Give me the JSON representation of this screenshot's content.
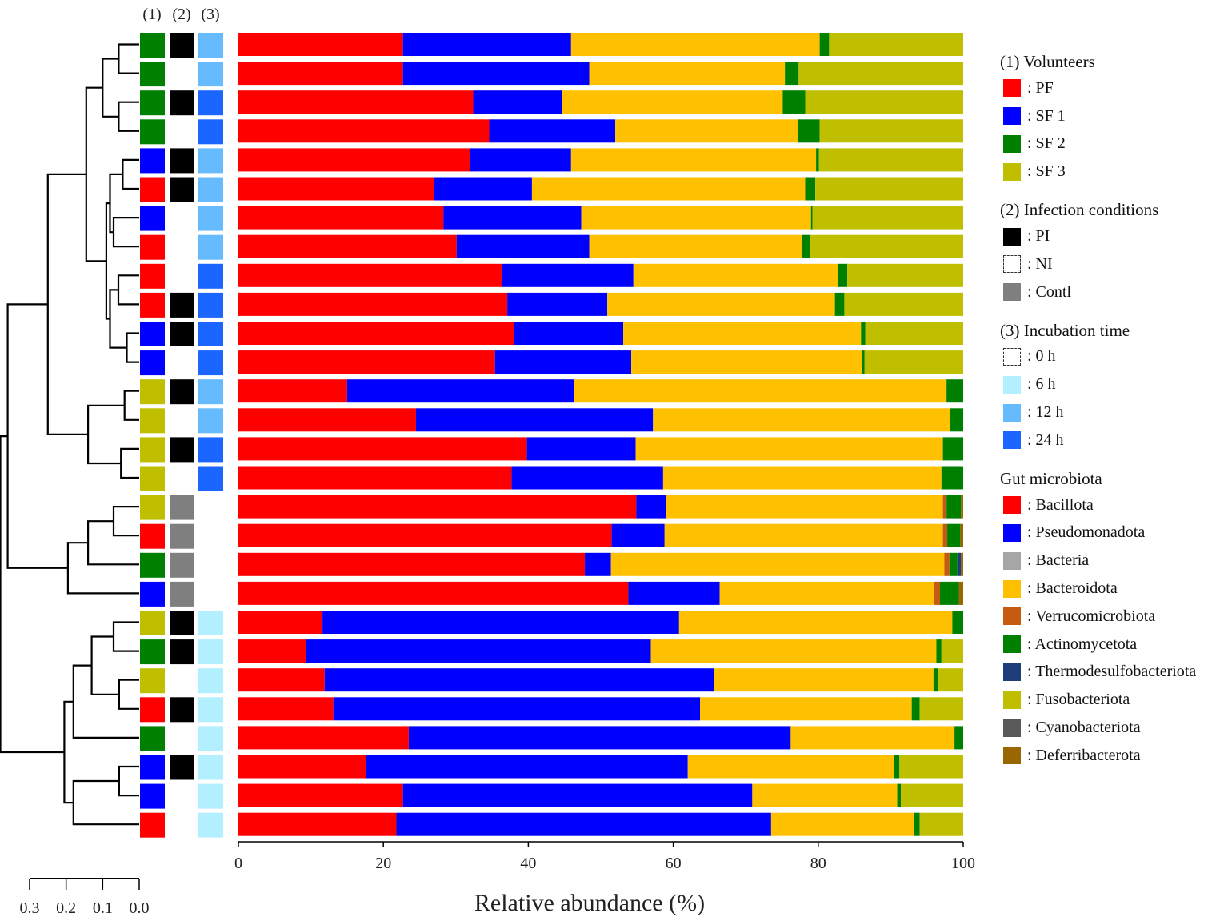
{
  "chart_data": {
    "type": "bar",
    "orientation": "horizontal",
    "stacked": true,
    "xlabel": "Relative abundance (%)",
    "xlim": [
      0,
      100
    ],
    "xticks": [
      "0",
      "20",
      "40",
      "60",
      "80",
      "100"
    ],
    "grid": false,
    "legend_position": "right",
    "column_headers": [
      "(1)",
      "(2)",
      "(3)"
    ],
    "dendrogram_scale": {
      "ticks": [
        "0.3",
        "0.2",
        "0.1",
        "0.0"
      ]
    },
    "categories": [
      "Bacillota",
      "Pseudomonadota",
      "Bacteria",
      "Bacteroidota",
      "Verrucomicrobiota",
      "Actinomycetota",
      "Thermodesulfobacteriota",
      "Fusobacteriota",
      "Cyanobacteriota",
      "Deferribacterota"
    ],
    "colors": {
      "Bacillota": "#ff0000",
      "Pseudomonadota": "#0000ff",
      "Bacteria": "#a6a6a6",
      "Bacteroidota": "#ffc000",
      "Verrucomicrobiota": "#c55a11",
      "Actinomycetota": "#008000",
      "Thermodesulfobacteriota": "#1f3d7a",
      "Fusobacteriota": "#bfbf00",
      "Cyanobacteriota": "#595959",
      "Deferribacterota": "#996600"
    },
    "samples": [
      {
        "volunteer": "SF 2",
        "infection": "PI",
        "time": "12 h",
        "values": [
          22.7,
          23.2,
          0,
          34.3,
          0,
          1.3,
          0,
          18.5,
          0,
          0
        ]
      },
      {
        "volunteer": "SF 2",
        "infection": "NI",
        "time": "12 h",
        "values": [
          22.7,
          25.7,
          0,
          27.0,
          0,
          1.9,
          0,
          22.7,
          0,
          0
        ]
      },
      {
        "volunteer": "SF 2",
        "infection": "PI",
        "time": "24 h",
        "values": [
          32.4,
          12.3,
          0,
          30.4,
          0,
          3.1,
          0,
          21.8,
          0,
          0
        ]
      },
      {
        "volunteer": "SF 2",
        "infection": "NI",
        "time": "24 h",
        "values": [
          34.6,
          17.4,
          0,
          25.2,
          0,
          3.0,
          0,
          19.8,
          0,
          0
        ]
      },
      {
        "volunteer": "SF 1",
        "infection": "PI",
        "time": "12 h",
        "values": [
          31.9,
          14.0,
          0,
          33.8,
          0,
          0.4,
          0,
          19.9,
          0,
          0
        ]
      },
      {
        "volunteer": "PF",
        "infection": "PI",
        "time": "12 h",
        "values": [
          27.0,
          13.5,
          0,
          37.7,
          0,
          1.4,
          0,
          20.4,
          0,
          0
        ]
      },
      {
        "volunteer": "SF 1",
        "infection": "NI",
        "time": "12 h",
        "values": [
          28.3,
          19.0,
          0,
          31.7,
          0,
          0.2,
          0,
          20.8,
          0,
          0
        ]
      },
      {
        "volunteer": "PF",
        "infection": "NI",
        "time": "12 h",
        "values": [
          30.1,
          18.3,
          0,
          29.3,
          0,
          1.2,
          0,
          21.1,
          0,
          0
        ]
      },
      {
        "volunteer": "PF",
        "infection": "NI",
        "time": "24 h",
        "values": [
          36.4,
          18.1,
          0,
          28.2,
          0,
          1.3,
          0,
          16.0,
          0,
          0
        ]
      },
      {
        "volunteer": "PF",
        "infection": "PI",
        "time": "24 h",
        "values": [
          37.1,
          13.8,
          0,
          31.4,
          0,
          1.3,
          0,
          16.4,
          0,
          0
        ]
      },
      {
        "volunteer": "SF 1",
        "infection": "PI",
        "time": "24 h",
        "values": [
          38.0,
          15.1,
          0,
          32.8,
          0,
          0.6,
          0,
          13.5,
          0,
          0
        ]
      },
      {
        "volunteer": "SF 1",
        "infection": "NI",
        "time": "24 h",
        "values": [
          35.4,
          18.8,
          0,
          31.8,
          0,
          0.4,
          0,
          13.6,
          0,
          0
        ]
      },
      {
        "volunteer": "SF 3",
        "infection": "PI",
        "time": "12 h",
        "values": [
          15.0,
          31.3,
          0,
          51.4,
          0,
          2.3,
          0,
          0,
          0,
          0
        ]
      },
      {
        "volunteer": "SF 3",
        "infection": "NI",
        "time": "12 h",
        "values": [
          24.5,
          32.7,
          0,
          41.0,
          0,
          1.8,
          0,
          0,
          0,
          0
        ]
      },
      {
        "volunteer": "SF 3",
        "infection": "PI",
        "time": "24 h",
        "values": [
          39.8,
          15.0,
          0,
          42.4,
          0,
          2.8,
          0,
          0,
          0,
          0
        ]
      },
      {
        "volunteer": "SF 3",
        "infection": "NI",
        "time": "24 h",
        "values": [
          37.7,
          20.9,
          0,
          38.4,
          0,
          3.0,
          0,
          0,
          0,
          0
        ]
      },
      {
        "volunteer": "SF 3",
        "infection": "Contl",
        "time": "",
        "values": [
          54.9,
          4.1,
          0,
          38.2,
          0.5,
          2.0,
          0,
          0,
          0,
          0.3
        ]
      },
      {
        "volunteer": "PF",
        "infection": "Contl",
        "time": "",
        "values": [
          51.5,
          7.3,
          0,
          38.4,
          0.6,
          1.8,
          0,
          0,
          0,
          0.4
        ]
      },
      {
        "volunteer": "SF 2",
        "infection": "Contl",
        "time": "",
        "values": [
          47.8,
          3.6,
          0,
          46.0,
          0.7,
          1.1,
          0.5,
          0,
          0,
          0.3
        ]
      },
      {
        "volunteer": "SF 1",
        "infection": "Contl",
        "time": "",
        "values": [
          53.8,
          12.6,
          0,
          29.6,
          0.8,
          2.6,
          0,
          0,
          0,
          0.6
        ]
      },
      {
        "volunteer": "SF 3",
        "infection": "PI",
        "time": "6 h",
        "values": [
          11.6,
          49.2,
          0,
          37.7,
          0,
          1.5,
          0,
          0,
          0,
          0
        ]
      },
      {
        "volunteer": "SF 2",
        "infection": "PI",
        "time": "6 h",
        "values": [
          9.3,
          47.6,
          0,
          39.4,
          0,
          0.7,
          0,
          3.0,
          0,
          0
        ]
      },
      {
        "volunteer": "SF 3",
        "infection": "NI",
        "time": "6 h",
        "values": [
          11.9,
          53.7,
          0,
          30.3,
          0,
          0.7,
          0,
          3.4,
          0,
          0
        ]
      },
      {
        "volunteer": "PF",
        "infection": "PI",
        "time": "6 h",
        "values": [
          13.1,
          50.6,
          0,
          29.2,
          0,
          1.1,
          0,
          6.0,
          0,
          0
        ]
      },
      {
        "volunteer": "SF 2",
        "infection": "NI",
        "time": "6 h",
        "values": [
          23.5,
          52.7,
          0,
          22.6,
          0,
          1.2,
          0,
          0,
          0,
          0
        ]
      },
      {
        "volunteer": "SF 1",
        "infection": "PI",
        "time": "6 h",
        "values": [
          17.6,
          44.4,
          0,
          28.5,
          0,
          0.7,
          0,
          8.8,
          0,
          0
        ]
      },
      {
        "volunteer": "SF 1",
        "infection": "NI",
        "time": "6 h",
        "values": [
          22.7,
          48.2,
          0,
          20.0,
          0,
          0.5,
          0,
          8.6,
          0,
          0
        ]
      },
      {
        "volunteer": "PF",
        "infection": "NI",
        "time": "6 h",
        "values": [
          21.8,
          51.7,
          0,
          19.7,
          0,
          0.8,
          0,
          6.0,
          0,
          0
        ]
      }
    ]
  },
  "legend": {
    "volunteers": {
      "title": "(1) Volunteers",
      "items": [
        {
          "label": ": PF",
          "color": "#ff0000"
        },
        {
          "label": ": SF 1",
          "color": "#0000ff"
        },
        {
          "label": ": SF 2",
          "color": "#008000"
        },
        {
          "label": ": SF 3",
          "color": "#bfbf00"
        }
      ]
    },
    "infection": {
      "title": "(2) Infection conditions",
      "items": [
        {
          "label": ": PI",
          "color": "#000000"
        },
        {
          "label": ": NI",
          "color": "dashed"
        },
        {
          "label": ": Contl",
          "color": "#7f7f7f"
        }
      ]
    },
    "incubation": {
      "title": "(3) Incubation time",
      "items": [
        {
          "label": ": 0 h",
          "color": "dashed"
        },
        {
          "label": ": 6 h",
          "color": "#b3f0ff"
        },
        {
          "label": ": 12 h",
          "color": "#66bbff"
        },
        {
          "label": ": 24 h",
          "color": "#1a66ff"
        }
      ]
    },
    "microbiota": {
      "title": "Gut microbiota",
      "items": [
        {
          "label": ": Bacillota",
          "color": "#ff0000"
        },
        {
          "label": ": Pseudomonadota",
          "color": "#0000ff"
        },
        {
          "label": ": Bacteria",
          "color": "#a6a6a6"
        },
        {
          "label": ": Bacteroidota",
          "color": "#ffc000"
        },
        {
          "label": ": Verrucomicrobiota",
          "color": "#c55a11"
        },
        {
          "label": ": Actinomycetota",
          "color": "#008000"
        },
        {
          "label": ": Thermodesulfobacteriota",
          "color": "#1f3d7a"
        },
        {
          "label": ": Fusobacteriota",
          "color": "#bfbf00"
        },
        {
          "label": ": Cyanobacteriota",
          "color": "#595959"
        },
        {
          "label": ": Deferribacterota",
          "color": "#996600"
        }
      ]
    }
  }
}
